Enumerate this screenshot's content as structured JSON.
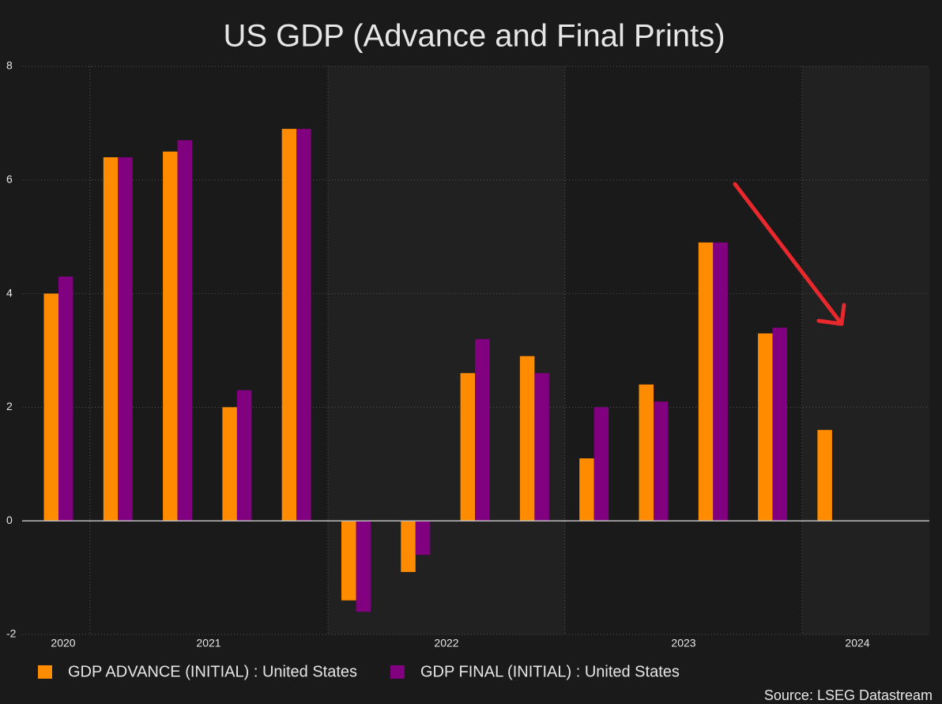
{
  "chart_data": {
    "type": "bar",
    "title": "US GDP (Advance and Final Prints)",
    "categories": [
      null,
      null,
      null,
      null,
      null,
      null,
      null,
      null,
      null,
      null,
      null,
      null,
      null,
      null
    ],
    "year_labels": [
      "2020",
      "2021",
      "2022",
      "2023",
      "2024"
    ],
    "series": [
      {
        "name": "GDP ADVANCE (INITIAL) : United States",
        "color": "#ff8c00",
        "values": [
          4.0,
          6.4,
          6.5,
          2.0,
          6.9,
          -1.4,
          -0.9,
          2.6,
          2.9,
          1.1,
          2.4,
          4.9,
          3.3,
          1.6
        ]
      },
      {
        "name": "GDP FINAL (INITIAL) : United States",
        "color": "#800080",
        "values": [
          4.3,
          6.4,
          6.7,
          2.3,
          6.9,
          -1.6,
          -0.6,
          3.2,
          2.6,
          2.0,
          2.1,
          4.9,
          3.4,
          null
        ]
      }
    ],
    "ylim": [
      -2,
      8
    ],
    "yticks": [
      -2,
      0,
      2,
      4,
      6,
      8
    ],
    "grid": true,
    "source": "Source: LSEG Datastream"
  }
}
